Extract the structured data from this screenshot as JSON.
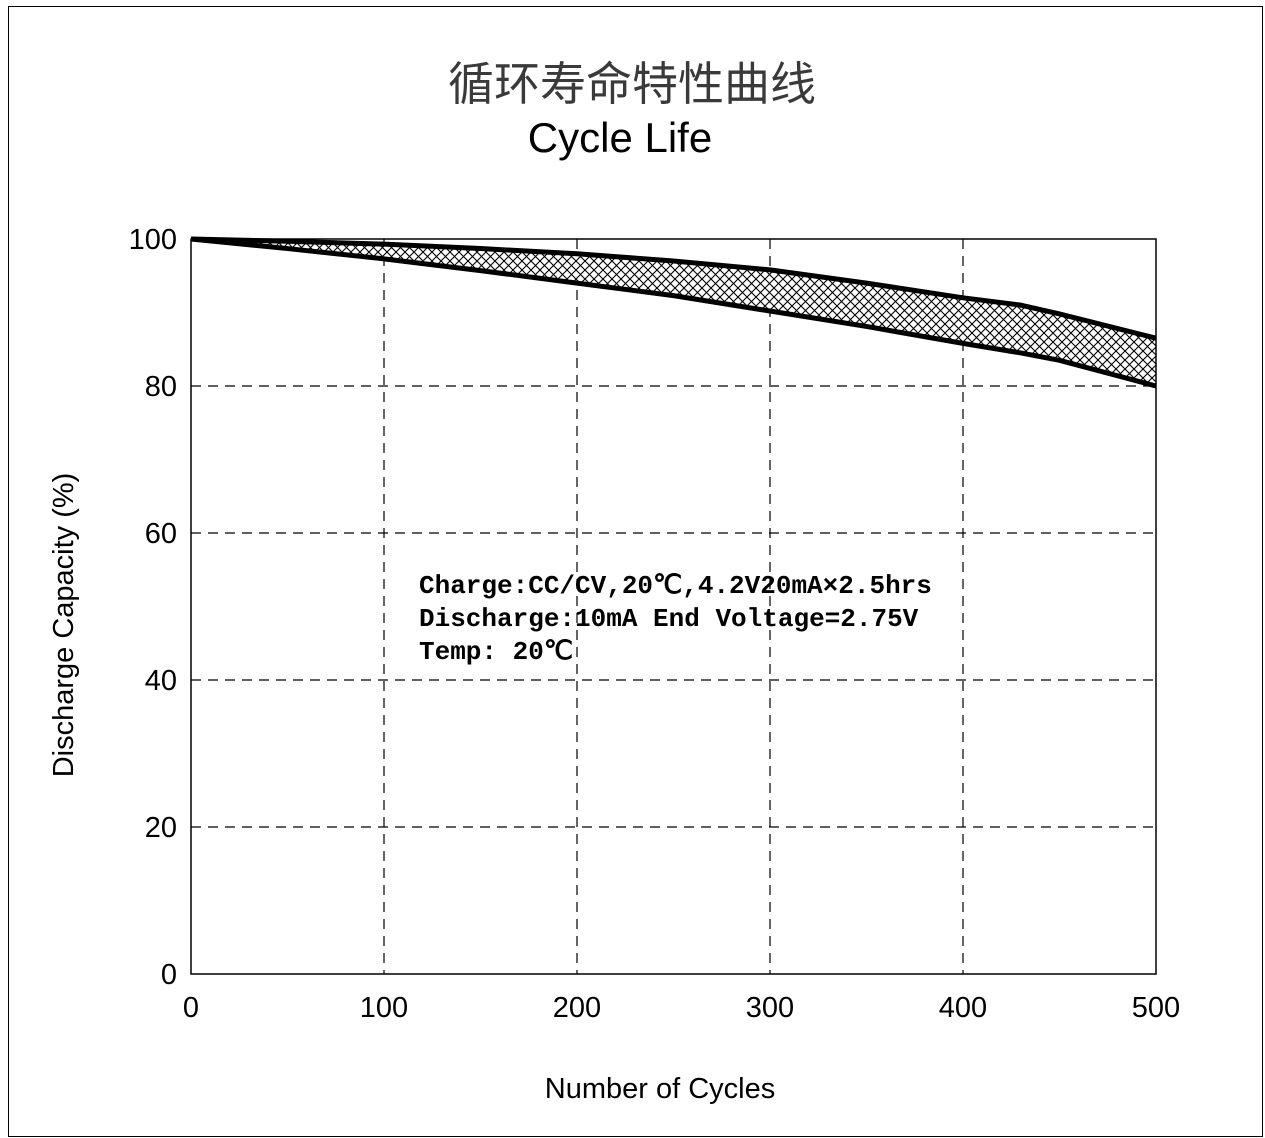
{
  "chart_data": {
    "type": "area",
    "title": "循环寿命特性曲线",
    "subtitle": "Cycle Life",
    "xlabel": "Number of Cycles",
    "ylabel": "Discharge Capacity (%)",
    "xlim": [
      0,
      500
    ],
    "ylim": [
      0,
      100
    ],
    "x_ticks": [
      "0",
      "100",
      "200",
      "300",
      "400",
      "500"
    ],
    "y_ticks": [
      "0",
      "20",
      "40",
      "60",
      "80",
      "100"
    ],
    "grid": true,
    "x": [
      0,
      50,
      100,
      150,
      200,
      250,
      300,
      350,
      400,
      430,
      450,
      500
    ],
    "series": [
      {
        "values": [
          100,
          99.7,
          99.3,
          98.7,
          98,
          97,
          95.8,
          94,
          92,
          91,
          89.8,
          86.5
        ]
      },
      {
        "values": [
          100,
          98.7,
          97.3,
          95.7,
          94,
          92.3,
          90.2,
          88.1,
          85.8,
          84.5,
          83.5,
          80
        ]
      }
    ],
    "annotations": [
      "Charge:CC/CV,20℃,4.2V20mA×2.5hrs",
      "Discharge:10mA End Voltage=2.75V",
      "Temp: 20℃"
    ]
  }
}
